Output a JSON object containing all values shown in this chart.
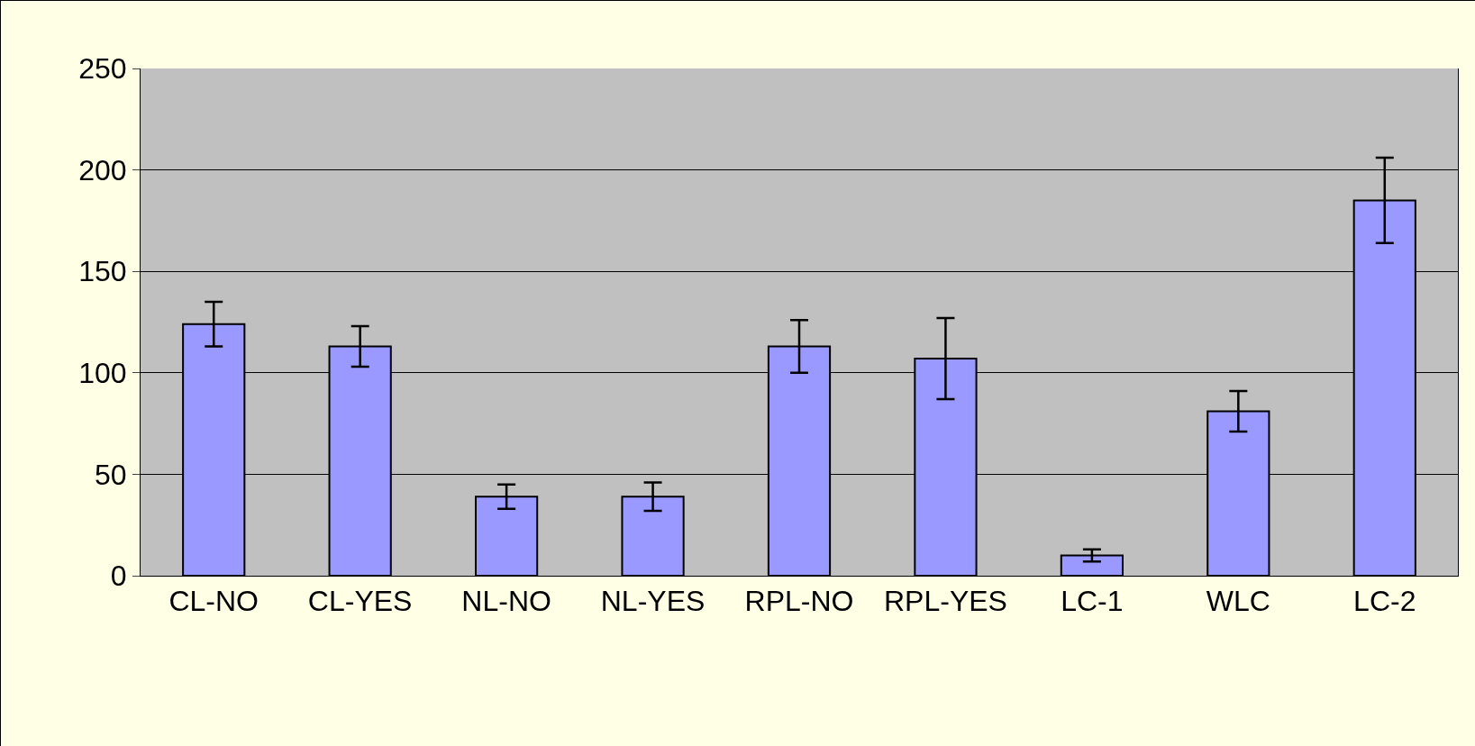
{
  "chart_data": {
    "type": "bar",
    "categories": [
      "CL-NO",
      "CL-YES",
      "NL-NO",
      "NL-YES",
      "RPL-NO",
      "RPL-YES",
      "LC-1",
      "WLC",
      "LC-2"
    ],
    "values": [
      124,
      113,
      39,
      39,
      113,
      107,
      10,
      81,
      185
    ],
    "errors": [
      11,
      10,
      6,
      7,
      13,
      20,
      3,
      10,
      21
    ],
    "color": "#9999ff",
    "ylim": [
      0,
      250
    ],
    "yticks": [
      0,
      50,
      100,
      150,
      200,
      250
    ],
    "grid": "y"
  }
}
